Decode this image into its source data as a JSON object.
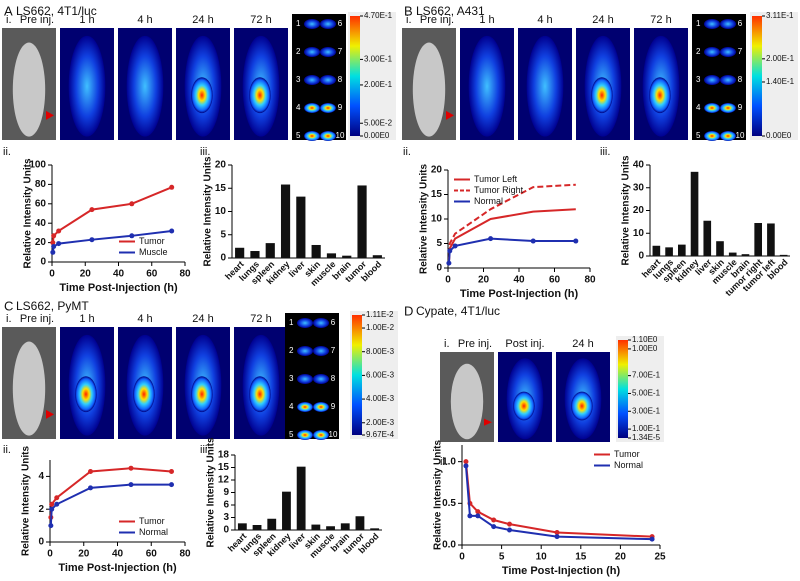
{
  "panels": [
    {
      "label": "A",
      "title": "LS662, 4T1/luc",
      "sections": [
        "i.",
        "ii.",
        "iii."
      ],
      "images": [
        "Pre inj.",
        "1 h",
        "4 h",
        "24 h",
        "72 h"
      ],
      "organs": [
        "1",
        "2",
        "3",
        "4",
        "5",
        "6",
        "7",
        "8",
        "9",
        "10"
      ],
      "colorbar": [
        {
          "value": 0.47,
          "label": "4.70E-1"
        },
        {
          "value": 0.3,
          "label": "3.00E-1"
        },
        {
          "value": 0.2,
          "label": "2.00E-1"
        },
        {
          "value": 0.05,
          "label": "5.00E-2"
        },
        {
          "value": 0,
          "label": "0.00E0"
        }
      ]
    },
    {
      "label": "B",
      "title": "LS662, A431",
      "sections": [
        "i.",
        "ii.",
        "iii."
      ],
      "images": [
        "Pre inj.",
        "1 h",
        "4 h",
        "24 h",
        "72 h"
      ],
      "organs": [
        "1",
        "2",
        "3",
        "4",
        "5",
        "6",
        "7",
        "8",
        "9",
        "10"
      ],
      "colorbar": [
        {
          "value": 0.311,
          "label": "3.11E-1"
        },
        {
          "value": 0.2,
          "label": "2.00E-1"
        },
        {
          "value": 0.14,
          "label": "1.40E-1"
        },
        {
          "value": 0,
          "label": "0.00E0"
        }
      ]
    },
    {
      "label": "C",
      "title": "LS662, PyMT",
      "sections": [
        "i.",
        "ii.",
        "iii."
      ],
      "images": [
        "Pre inj.",
        "1 h",
        "4 h",
        "24 h",
        "72 h"
      ],
      "organs": [
        "1",
        "2",
        "3",
        "4",
        "5",
        "6",
        "7",
        "8",
        "9",
        "10"
      ],
      "colorbar": [
        {
          "value": 0.0111,
          "label": "1.11E-2"
        },
        {
          "value": 0.01,
          "label": "1.00E-2"
        },
        {
          "value": 0.008,
          "label": "8.00E-3"
        },
        {
          "value": 0.006,
          "label": "6.00E-3"
        },
        {
          "value": 0.004,
          "label": "4.00E-3"
        },
        {
          "value": 0.002,
          "label": "2.00E-3"
        },
        {
          "value": 0.000967,
          "label": "9.67E-4"
        }
      ]
    },
    {
      "label": "D",
      "title": "Cypate, 4T1/luc",
      "sections": [
        "i.",
        "ii."
      ],
      "images": [
        "Pre inj.",
        "Post inj.",
        "24 h"
      ],
      "colorbar": [
        {
          "value": 1.1,
          "label": "1.10E0"
        },
        {
          "value": 1.0,
          "label": "1.00E0"
        },
        {
          "value": 0.7,
          "label": "7.00E-1"
        },
        {
          "value": 0.5,
          "label": "5.00E-1"
        },
        {
          "value": 0.3,
          "label": "3.00E-1"
        },
        {
          "value": 0.1,
          "label": "1.00E-1"
        },
        {
          "value": 1.34e-05,
          "label": "1.34E-5"
        }
      ]
    }
  ],
  "chart_data": [
    {
      "type": "line",
      "xlabel": "Time Post-Injection (h)",
      "ylabel": "Relative Intensity Units",
      "x": [
        0.5,
        1,
        4,
        24,
        48,
        72
      ],
      "xlim": [
        0,
        80
      ],
      "xticks": [
        0,
        20,
        40,
        60,
        80
      ],
      "ylim": [
        0,
        100
      ],
      "yticks": [
        0,
        20,
        40,
        60,
        80,
        100
      ],
      "legend": "lower right",
      "series": [
        {
          "name": "Tumor",
          "color": "#d62728",
          "markers": true,
          "values": [
            20,
            27,
            32,
            54,
            60,
            77
          ]
        },
        {
          "name": "Muscle",
          "color": "#1f2fb0",
          "markers": true,
          "values": [
            10,
            16,
            19,
            23,
            27,
            32
          ]
        }
      ]
    },
    {
      "type": "bar",
      "ylabel": "Relative Intensity Units",
      "color": "#111111",
      "categories": [
        "heart",
        "lungs",
        "spleen",
        "kidney",
        "liver",
        "skin",
        "muscle",
        "brain",
        "tumor",
        "blood"
      ],
      "values": [
        2.2,
        1.5,
        3.2,
        15.8,
        13.2,
        2.8,
        1.0,
        0.5,
        15.6,
        0.6
      ],
      "ylim": [
        0,
        20
      ],
      "yticks": [
        0,
        5,
        10,
        15,
        20
      ]
    },
    {
      "type": "line",
      "xlabel": "Time Post-Injection (h)",
      "ylabel": "Relative Intensity Units",
      "x": [
        0.5,
        1,
        4,
        24,
        48,
        72
      ],
      "xlim": [
        0,
        80
      ],
      "xticks": [
        0,
        20,
        40,
        60,
        80
      ],
      "ylim": [
        0,
        20
      ],
      "yticks": [
        0,
        5,
        10,
        15,
        20
      ],
      "legend": "upper left",
      "series": [
        {
          "name": "Tumor Left",
          "color": "#d62728",
          "values": [
            1,
            4,
            6,
            10,
            11.5,
            12
          ]
        },
        {
          "name": "Tumor Right",
          "color": "#d62728",
          "style": "dashed",
          "values": [
            1,
            5,
            7,
            12,
            16.5,
            17
          ]
        },
        {
          "name": "Normal",
          "color": "#1f2fb0",
          "markers": true,
          "values": [
            1,
            3.5,
            4.5,
            6,
            5.5,
            5.5
          ]
        }
      ]
    },
    {
      "type": "bar",
      "ylabel": "Relative Intensity Units",
      "color": "#111111",
      "categories": [
        "heart",
        "lungs",
        "spleen",
        "kidney",
        "liver",
        "skin",
        "muscle",
        "brain",
        "tumor right",
        "tumor left",
        "blood"
      ],
      "values": [
        4.5,
        3.8,
        5,
        37,
        15.5,
        6.5,
        1.5,
        0.8,
        14.5,
        14.3,
        0.5
      ],
      "ylim": [
        0,
        40
      ],
      "yticks": [
        0,
        10,
        20,
        30,
        40
      ]
    },
    {
      "type": "line",
      "xlabel": "Time Post-Injection (h)",
      "ylabel": "Relative Intensity Units",
      "x": [
        0.5,
        1,
        4,
        24,
        48,
        72
      ],
      "xlim": [
        0,
        80
      ],
      "xticks": [
        0,
        20,
        40,
        60,
        80
      ],
      "ylim": [
        0,
        5
      ],
      "yticks": [
        0,
        2,
        4
      ],
      "legend": "lower right",
      "series": [
        {
          "name": "Tumor",
          "color": "#d62728",
          "markers": true,
          "values": [
            1.5,
            2.3,
            2.7,
            4.3,
            4.5,
            4.3
          ]
        },
        {
          "name": "Normal",
          "color": "#1f2fb0",
          "markers": true,
          "values": [
            1,
            2,
            2.3,
            3.3,
            3.5,
            3.5
          ]
        }
      ]
    },
    {
      "type": "bar",
      "ylabel": "Relative Intensity Units",
      "color": "#111111",
      "categories": [
        "heart",
        "lungs",
        "spleen",
        "kidney",
        "liver",
        "skin",
        "muscle",
        "brain",
        "tumor",
        "blood"
      ],
      "values": [
        1.6,
        1.2,
        2.7,
        9.2,
        15.2,
        1.3,
        0.9,
        1.6,
        3.3,
        0.4
      ],
      "ylim": [
        0,
        18
      ],
      "yticks": [
        0,
        3,
        6,
        9,
        12,
        15,
        18
      ]
    },
    {
      "type": "line",
      "xlabel": "Time Post-Injection (h)",
      "ylabel": "Relative Intensity Units",
      "x": [
        0.5,
        1,
        2,
        4,
        6,
        12,
        24
      ],
      "xlim": [
        0,
        25
      ],
      "xticks": [
        0,
        5,
        10,
        15,
        20,
        25
      ],
      "ylim": [
        0,
        1.2
      ],
      "yticks": [
        {
          "value": 0,
          "label": "0.0"
        },
        {
          "value": 0.5,
          "label": "0.5"
        },
        {
          "value": 1,
          "label": "1.0"
        }
      ],
      "legend": "upper right",
      "series": [
        {
          "name": "Tumor",
          "color": "#d62728",
          "markers": true,
          "values": [
            1.0,
            0.5,
            0.4,
            0.3,
            0.25,
            0.15,
            0.1
          ]
        },
        {
          "name": "Normal",
          "color": "#1f2fb0",
          "markers": true,
          "values": [
            0.95,
            0.35,
            0.35,
            0.22,
            0.18,
            0.1,
            0.07
          ]
        }
      ]
    }
  ]
}
